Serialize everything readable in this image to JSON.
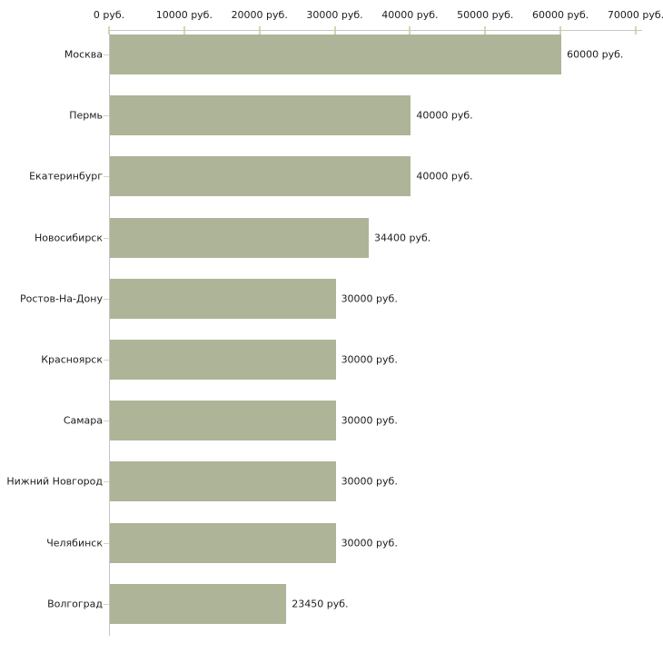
{
  "chart_data": {
    "type": "bar",
    "orientation": "horizontal",
    "title": "",
    "xlabel": "",
    "ylabel": "",
    "xlim": [
      0,
      70000
    ],
    "grid": false,
    "legend": null,
    "categories": [
      "Москва",
      "Пермь",
      "Екатеринбург",
      "Новосибирск",
      "Ростов-На-Дону",
      "Красноярск",
      "Самара",
      "Нижний Новгород",
      "Челябинск",
      "Волгоград"
    ],
    "values": [
      60000,
      40000,
      40000,
      34400,
      30000,
      30000,
      30000,
      30000,
      30000,
      23450
    ],
    "value_labels": [
      "60000 руб.",
      "40000 руб.",
      "40000 руб.",
      "34400 руб.",
      "30000 руб.",
      "30000 руб.",
      "30000 руб.",
      "30000 руб.",
      "30000 руб.",
      "23450 руб."
    ],
    "x_tick_values": [
      0,
      10000,
      20000,
      30000,
      40000,
      50000,
      60000,
      70000
    ],
    "x_tick_labels": [
      "0 руб.",
      "10000 руб.",
      "20000 руб.",
      "30000 руб.",
      "40000 руб.",
      "50000 руб.",
      "60000 руб.",
      "70000 руб."
    ],
    "colors": {
      "bar": "#aeb498",
      "axis_line": "#c6c6c6",
      "tick": "#d6d6b0",
      "text": "#1c1c1c",
      "background": "#ffffff"
    }
  }
}
